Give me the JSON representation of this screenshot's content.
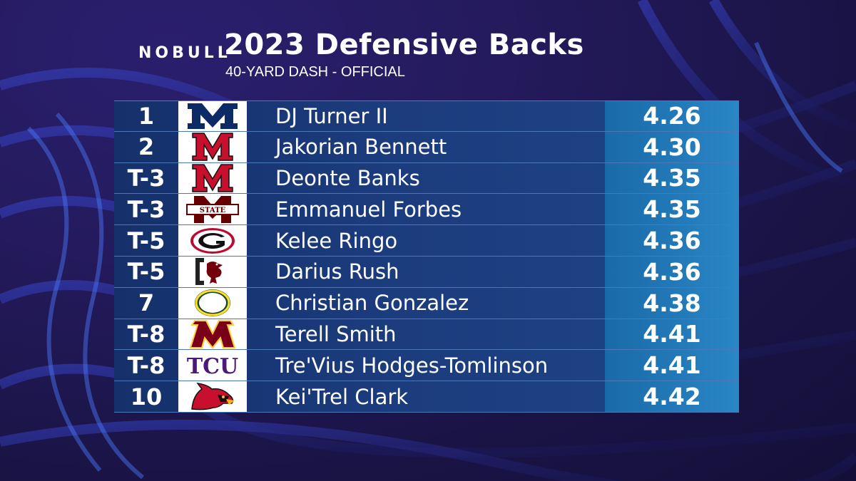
{
  "header": {
    "brand": "NOBULL",
    "title": "2023 Defensive Backs",
    "subtitle": "40-YARD DASH - OFFICIAL"
  },
  "colors": {
    "row_bg": "#1b3b7c",
    "time_bg": "#2a86c6",
    "divider": "#4a78b8"
  },
  "rows": [
    {
      "rank": "1",
      "logo": "michigan-logo",
      "name": "DJ Turner II",
      "time": "4.26"
    },
    {
      "rank": "2",
      "logo": "maryland-logo",
      "name": "Jakorian Bennett",
      "time": "4.30"
    },
    {
      "rank": "T-3",
      "logo": "maryland-logo",
      "name": "Deonte Banks",
      "time": "4.35"
    },
    {
      "rank": "T-3",
      "logo": "mississippi-state-logo",
      "name": "Emmanuel Forbes",
      "time": "4.35"
    },
    {
      "rank": "T-5",
      "logo": "georgia-logo",
      "name": "Kelee Ringo",
      "time": "4.36"
    },
    {
      "rank": "T-5",
      "logo": "south-carolina-logo",
      "name": "Darius Rush",
      "time": "4.36"
    },
    {
      "rank": "7",
      "logo": "oregon-logo",
      "name": "Christian Gonzalez",
      "time": "4.38"
    },
    {
      "rank": "T-8",
      "logo": "minnesota-logo",
      "name": "Terell Smith",
      "time": "4.41"
    },
    {
      "rank": "T-8",
      "logo": "tcu-logo",
      "name": "Tre'Vius Hodges-Tomlinson",
      "time": "4.41"
    },
    {
      "rank": "10",
      "logo": "louisville-logo",
      "name": "Kei'Trel Clark",
      "time": "4.42"
    }
  ],
  "logo_text": {
    "tcu": "TCU",
    "state": "STATE"
  }
}
